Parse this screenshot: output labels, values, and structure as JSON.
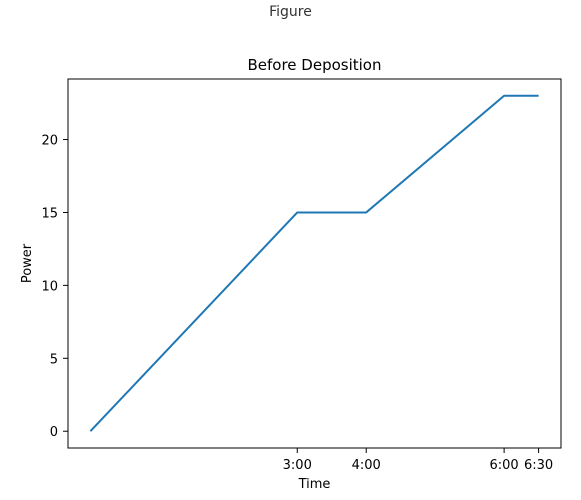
{
  "window": {
    "title": "Figure"
  },
  "chart_data": {
    "type": "line",
    "title": "Before Deposition",
    "xlabel": "Time",
    "ylabel": "Power",
    "x": [
      "0:00",
      "3:00",
      "4:00",
      "6:00",
      "6:30"
    ],
    "x_minutes": [
      0,
      180,
      240,
      360,
      390
    ],
    "series": [
      {
        "values": [
          0,
          15,
          15,
          23,
          23
        ],
        "color": "#1f77b4"
      }
    ],
    "xticks": [
      {
        "label": "3:00",
        "value": 180
      },
      {
        "label": "4:00",
        "value": 240
      },
      {
        "label": "6:00",
        "value": 360
      },
      {
        "label": "6:30",
        "value": 390
      }
    ],
    "yticks": [
      0,
      5,
      10,
      15,
      20
    ],
    "xlim": [
      -19.5,
      409.5
    ],
    "ylim": [
      -1.15,
      24.15
    ],
    "grid": false,
    "legend": "none"
  }
}
